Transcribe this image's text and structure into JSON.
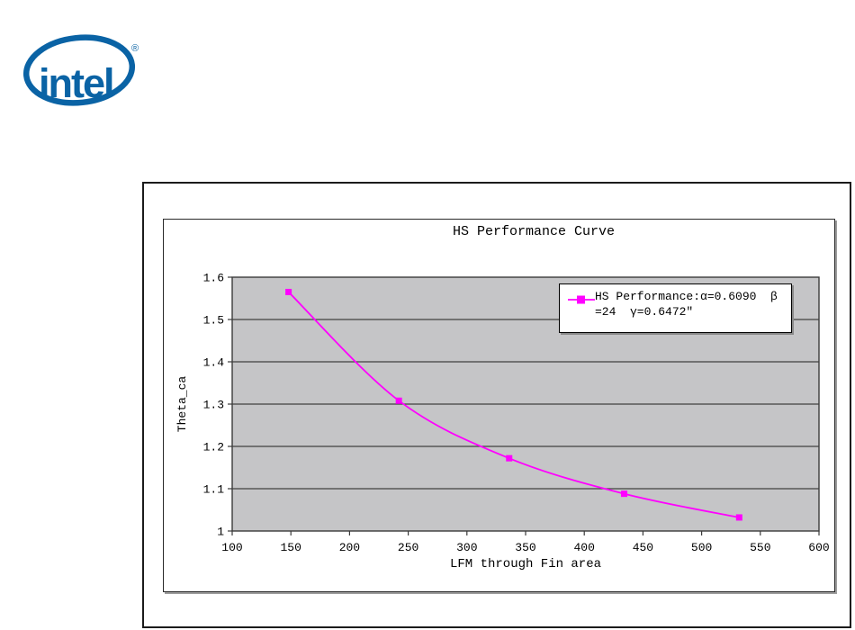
{
  "logo": {
    "text": "intel",
    "registered_mark": "®",
    "color": "#0a63a5"
  },
  "chart_data": {
    "type": "line",
    "title": "HS Performance Curve",
    "xlabel": "LFM through Fin area",
    "ylabel": "Theta_ca",
    "xlim": [
      100,
      600
    ],
    "ylim": [
      1,
      1.6
    ],
    "x_ticks": [
      100,
      150,
      200,
      250,
      300,
      350,
      400,
      450,
      500,
      550,
      600
    ],
    "x_tick_labels": [
      "100",
      "150",
      "200",
      "250",
      "300",
      "350",
      "400",
      "450",
      "500",
      "550",
      "600"
    ],
    "y_ticks": [
      1.6,
      1.5,
      1.4,
      1.3,
      1.2,
      1.1,
      1
    ],
    "y_tick_labels": [
      "1.6",
      "1.5",
      "1.4",
      "1.3",
      "1.2",
      "1.1",
      "1"
    ],
    "grid": true,
    "legend": {
      "position": "top-right-inside",
      "lines": [
        "HS Performance:α=0.6090  β",
        "=24  γ=0.6472″"
      ]
    },
    "series": [
      {
        "name": "HS Performance:α=0.6090 β=24 γ=0.6472″",
        "color": "#ff00ff",
        "marker": "square",
        "smooth": true,
        "x": [
          148,
          242,
          336,
          434,
          532
        ],
        "y": [
          1.565,
          1.308,
          1.172,
          1.088,
          1.032
        ]
      }
    ],
    "colors": {
      "plot_bg": "#c5c5c7",
      "gridline": "#404040",
      "axis": "#3a3a3a",
      "text": "#000000"
    }
  }
}
